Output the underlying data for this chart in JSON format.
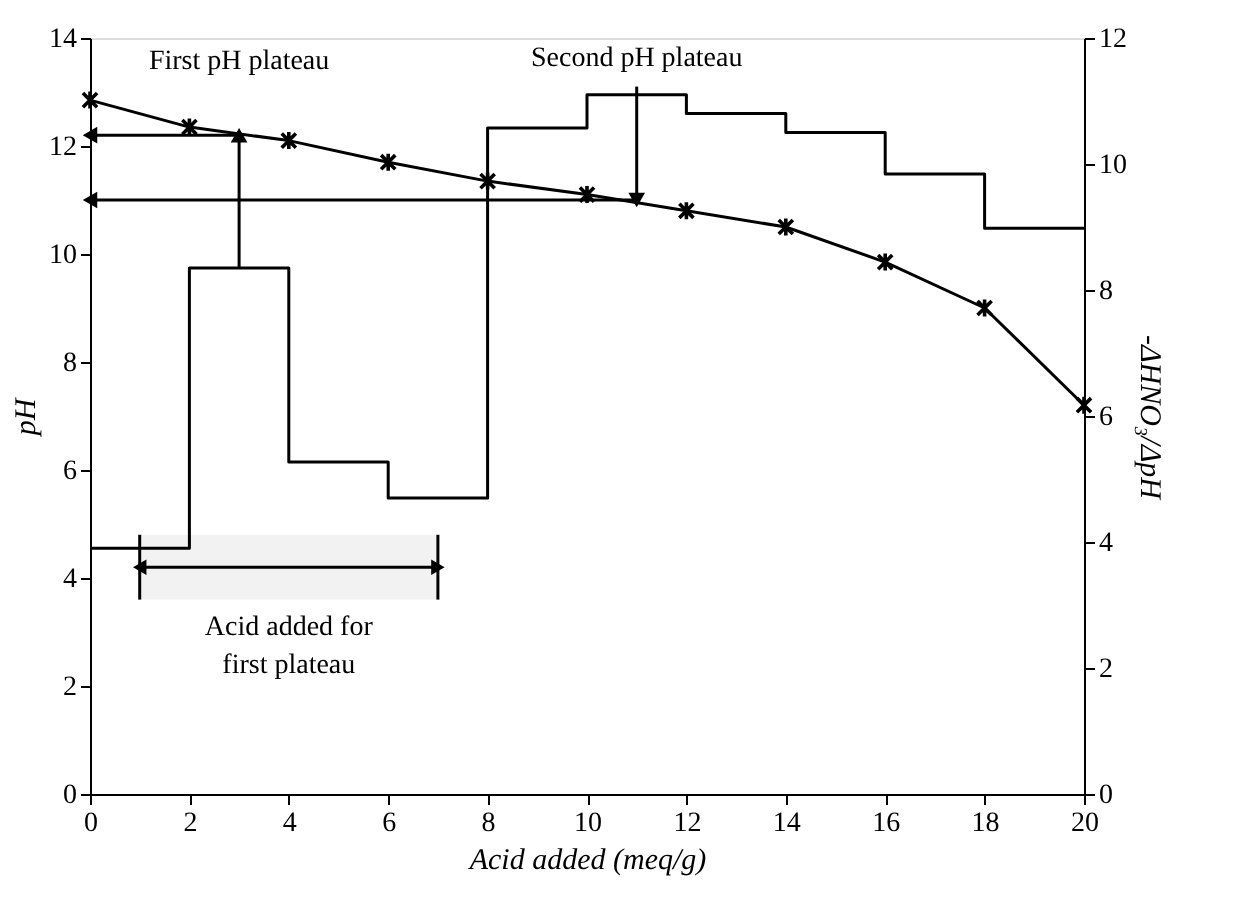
{
  "chart_data": {
    "type": "line",
    "xlabel": "Acid added (meq/g)",
    "ylabel": "pH",
    "y2label": "-ΔHNO₃/ΔpH",
    "xlim": [
      0,
      20
    ],
    "xticks": [
      0,
      2,
      4,
      6,
      8,
      10,
      12,
      14,
      16,
      18,
      20
    ],
    "ylim": [
      0,
      14
    ],
    "yticks": [
      0,
      2,
      4,
      6,
      8,
      10,
      12,
      14
    ],
    "y2lim": [
      0,
      12
    ],
    "y2ticks": [
      0,
      2,
      4,
      6,
      8,
      10,
      12
    ],
    "grid": false,
    "series": [
      {
        "type": "line",
        "color": "#000000",
        "marker": "cross",
        "x": [
          0,
          2,
          4,
          6,
          8,
          10,
          12,
          14,
          16,
          18,
          20
        ],
        "values": [
          12.85,
          12.35,
          12.1,
          11.7,
          11.35,
          11.1,
          10.8,
          10.5,
          9.85,
          9.0,
          7.2
        ]
      },
      {
        "type": "step",
        "axis": "y2",
        "color": "#000000",
        "marker": "none",
        "x": [
          0,
          2,
          4,
          6,
          8,
          10,
          12,
          14,
          16,
          18,
          20
        ],
        "values": [
          3.9,
          8.35,
          5.27,
          4.7,
          10.57,
          11.1,
          10.8,
          10.5,
          9.84,
          8.98,
          8.98
        ]
      }
    ],
    "annotations": [
      {
        "text": "First pH plateau",
        "x": 3,
        "y": 12.2
      },
      {
        "text": "Second pH plateau",
        "x": 11,
        "y": 11.0
      }
    ],
    "bands": [
      {
        "axis": "x",
        "from": 1,
        "to": 7,
        "label": "Acid added for first plateau",
        "color": "#f2f2f2"
      }
    ]
  }
}
